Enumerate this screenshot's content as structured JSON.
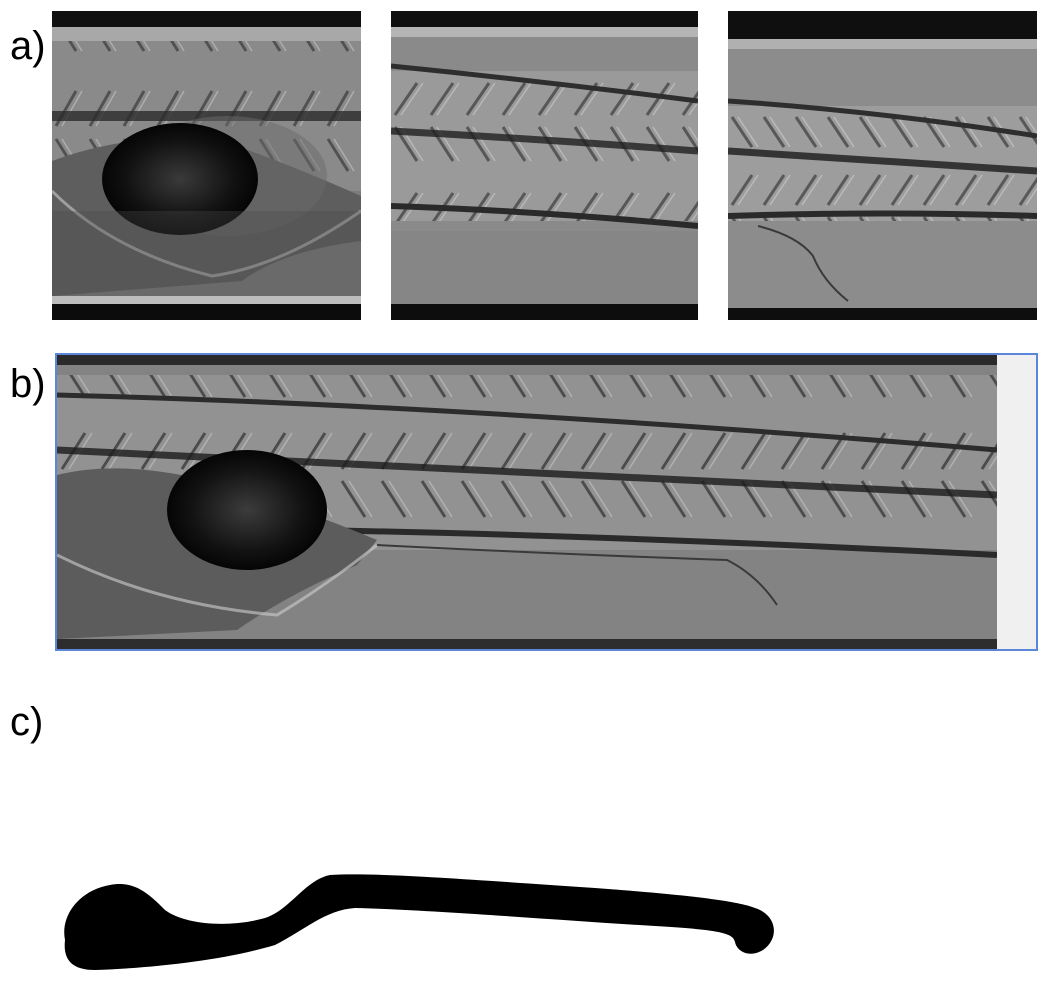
{
  "panels": {
    "a": {
      "label": "a)"
    },
    "b": {
      "label": "b)"
    },
    "c": {
      "label": "c)"
    }
  },
  "colors": {
    "background": "#ffffff",
    "selection_border": "#5b86d9",
    "mask_fill": "#000000",
    "padding_fill": "#f0f0f0"
  }
}
